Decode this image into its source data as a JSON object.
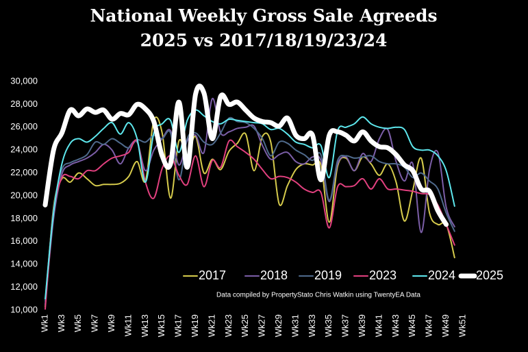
{
  "chart_data": {
    "type": "line",
    "title": "National Weekly Gross Sale Agreeds",
    "subtitle": "2025 vs 2017/18/19/23/24",
    "annotation": "Data compiled by PropertyStato Chris Watkin using TwentyEA Data",
    "categories": [
      "Wk1",
      null,
      "Wk3",
      null,
      "Wk5",
      null,
      "Wk7",
      null,
      "Wk9",
      null,
      "Wk11",
      null,
      "Wk13",
      null,
      "Wk15",
      null,
      "Wk17",
      null,
      "Wk19",
      null,
      "Wk21",
      null,
      "Wk23",
      null,
      "Wk25",
      null,
      "Wk27",
      null,
      "Wk29",
      null,
      "Wk31",
      null,
      "Wk33",
      null,
      "Wk35",
      null,
      "Wk37",
      null,
      "Wk39",
      null,
      "Wk41",
      null,
      "Wk43",
      null,
      "Wk45",
      null,
      "Wk47",
      null,
      "Wk49",
      null,
      "Wk51"
    ],
    "ylim": [
      10000,
      30000
    ],
    "yticks": [
      {
        "value": 10000,
        "label": "10,000"
      },
      {
        "value": 12000,
        "label": "12,000"
      },
      {
        "value": 14000,
        "label": "14,000"
      },
      {
        "value": 16000,
        "label": "16,000"
      },
      {
        "value": 18000,
        "label": "18,000"
      },
      {
        "value": 20000,
        "label": "20,000"
      },
      {
        "value": 22000,
        "label": "22,000"
      },
      {
        "value": 24000,
        "label": "24,000"
      },
      {
        "value": 26000,
        "label": "26,000"
      },
      {
        "value": 28000,
        "label": "28,000"
      },
      {
        "value": 30000,
        "label": "30,000"
      }
    ],
    "grid": false,
    "legend": "bottom-right",
    "series": [
      {
        "name": "2017",
        "color": "#d6cb4c",
        "width": 2,
        "values": [
          10300,
          19000,
          21500,
          21200,
          22000,
          21500,
          20900,
          21000,
          21000,
          21100,
          21700,
          23000,
          21300,
          26600,
          25500,
          19800,
          24800,
          23500,
          25200,
          22000,
          23200,
          22300,
          23900,
          24600,
          25400,
          22200,
          25200,
          24700,
          19300,
          20900,
          22300,
          22800,
          22700,
          22700,
          17700,
          22600,
          23300,
          22200,
          23400,
          22800,
          21800,
          22800,
          21200,
          17800,
          20500,
          23300,
          18500,
          17500,
          17500,
          14600,
          null
        ]
      },
      {
        "name": "2018",
        "color": "#7b5ea7",
        "width": 2,
        "values": [
          10500,
          18000,
          21900,
          22700,
          23000,
          23300,
          23800,
          24500,
          24000,
          22800,
          24200,
          24700,
          22200,
          24000,
          25000,
          25700,
          22700,
          24800,
          25300,
          23800,
          28500,
          25500,
          25600,
          25900,
          26000,
          26100,
          24400,
          23200,
          23600,
          23800,
          23000,
          22800,
          23400,
          23100,
          19500,
          22800,
          23400,
          22200,
          23700,
          23000,
          25000,
          25800,
          23000,
          21300,
          22800,
          16800,
          22300,
          23800,
          19000,
          17300,
          null
        ]
      },
      {
        "name": "2019",
        "color": "#4f6a8c",
        "width": 2,
        "values": [
          10800,
          18800,
          22300,
          22900,
          23200,
          23600,
          24700,
          24500,
          25000,
          24600,
          24200,
          24900,
          24700,
          25300,
          25000,
          25500,
          21400,
          25000,
          25500,
          24700,
          24500,
          25500,
          26800,
          26500,
          26400,
          25900,
          25000,
          23500,
          24700,
          24600,
          24000,
          23600,
          23100,
          23600,
          19600,
          23100,
          23500,
          23300,
          23400,
          23500,
          23000,
          22800,
          22800,
          22500,
          21600,
          22000,
          21300,
          20600,
          18500,
          16900,
          null
        ]
      },
      {
        "name": "2023",
        "color": "#e2407f",
        "width": 2,
        "values": [
          10100,
          18500,
          21600,
          21700,
          21500,
          22200,
          22200,
          22800,
          23300,
          23500,
          23800,
          24800,
          21200,
          19800,
          22400,
          23500,
          21800,
          21000,
          23500,
          20800,
          23100,
          22500,
          24800,
          24300,
          23800,
          23200,
          22300,
          21500,
          21700,
          21600,
          21200,
          20600,
          20300,
          20300,
          17200,
          20800,
          20800,
          20900,
          21500,
          20600,
          21500,
          20600,
          20600,
          20500,
          20400,
          20200,
          20100,
          19200,
          17500,
          15700,
          null
        ]
      },
      {
        "name": "2024",
        "color": "#5ee8ee",
        "width": 2,
        "values": [
          11000,
          18500,
          22800,
          24600,
          25000,
          24700,
          25200,
          25900,
          26400,
          25400,
          26400,
          25000,
          21200,
          25500,
          26300,
          26600,
          23800,
          26600,
          27500,
          27000,
          26500,
          26300,
          26700,
          26600,
          26500,
          26400,
          26300,
          25800,
          25900,
          25400,
          24700,
          24500,
          24200,
          24400,
          21600,
          25700,
          26000,
          26300,
          26900,
          26300,
          26000,
          25900,
          26000,
          25800,
          24300,
          24000,
          24000,
          23500,
          22200,
          19100,
          null
        ]
      },
      {
        "name": "2025",
        "color": "#ffffff",
        "width": 7,
        "values": [
          19200,
          24000,
          25500,
          27500,
          27000,
          27600,
          27300,
          27500,
          26700,
          27200,
          27100,
          28000,
          27600,
          26500,
          23500,
          22800,
          28200,
          22500,
          28900,
          29000,
          25000,
          28700,
          28000,
          28200,
          27500,
          26800,
          26500,
          26400,
          26100,
          26800,
          25300,
          25000,
          25300,
          21400,
          25300,
          25600,
          25300,
          24800,
          25600,
          24800,
          24300,
          24200,
          23600,
          22700,
          22200,
          20600,
          20400,
          18700,
          17500,
          null,
          null
        ]
      }
    ]
  }
}
